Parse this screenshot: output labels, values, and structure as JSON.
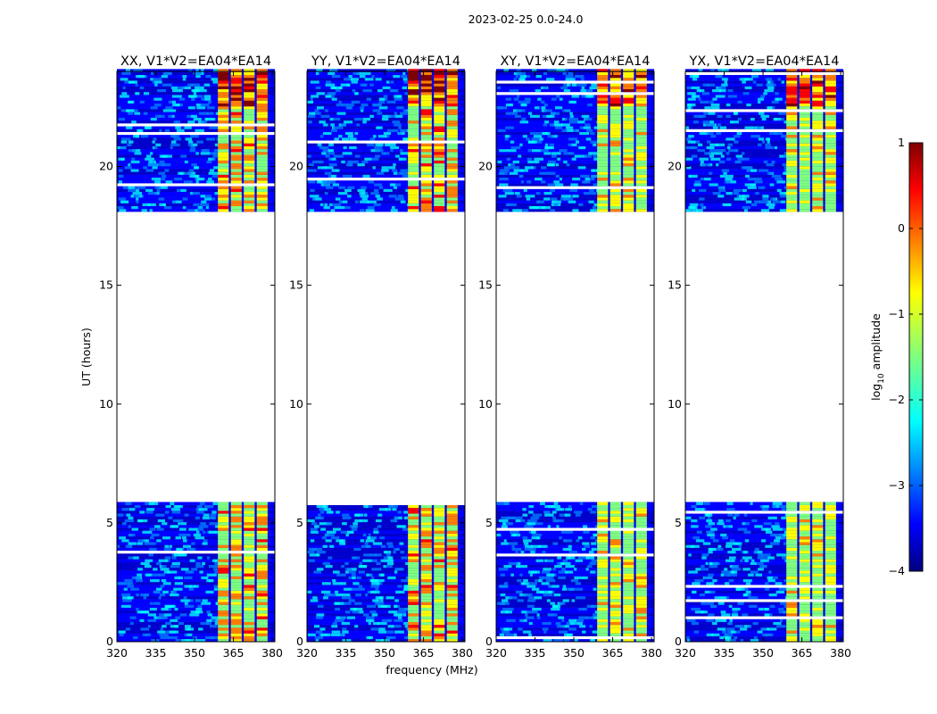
{
  "chart_data": {
    "type": "heatmap",
    "title": "2023-02-25 0.0-24.0",
    "xlabel": "frequency (MHz)",
    "ylabel": "UT (hours)",
    "xlim": [
      320,
      381
    ],
    "ylim": [
      0,
      24
    ],
    "xticks": [
      320,
      335,
      350,
      365,
      380
    ],
    "yticks": [
      0,
      5,
      10,
      15,
      20
    ],
    "data_gap_hours": [
      5.8,
      18.1
    ],
    "rfi_band_mhz": [
      359,
      378
    ],
    "panels": [
      {
        "title": "XX, V1*V2=EA04*EA14",
        "polarization": "XX"
      },
      {
        "title": "YY, V1*V2=EA04*EA14",
        "polarization": "YY"
      },
      {
        "title": "XY, V1*V2=EA04*EA14",
        "polarization": "XY"
      },
      {
        "title": "YX, V1*V2=EA04*EA14",
        "polarization": "YX"
      }
    ],
    "colorbar": {
      "label_prefix": "log",
      "label_subscript": "10",
      "label_suffix": " amplitude",
      "range": [
        -4,
        1
      ],
      "ticks": [
        {
          "value": 1,
          "label": "1"
        },
        {
          "value": 0,
          "label": "0"
        },
        {
          "value": -1,
          "label": "−1"
        },
        {
          "value": -2,
          "label": "−2"
        },
        {
          "value": -3,
          "label": "−3"
        },
        {
          "value": -4,
          "label": "−4"
        }
      ],
      "colormap": [
        "#00007f",
        "#0000ff",
        "#007fff",
        "#00ffff",
        "#7fff7f",
        "#ffff00",
        "#ff7f00",
        "#ff0000",
        "#7f0000"
      ]
    }
  }
}
